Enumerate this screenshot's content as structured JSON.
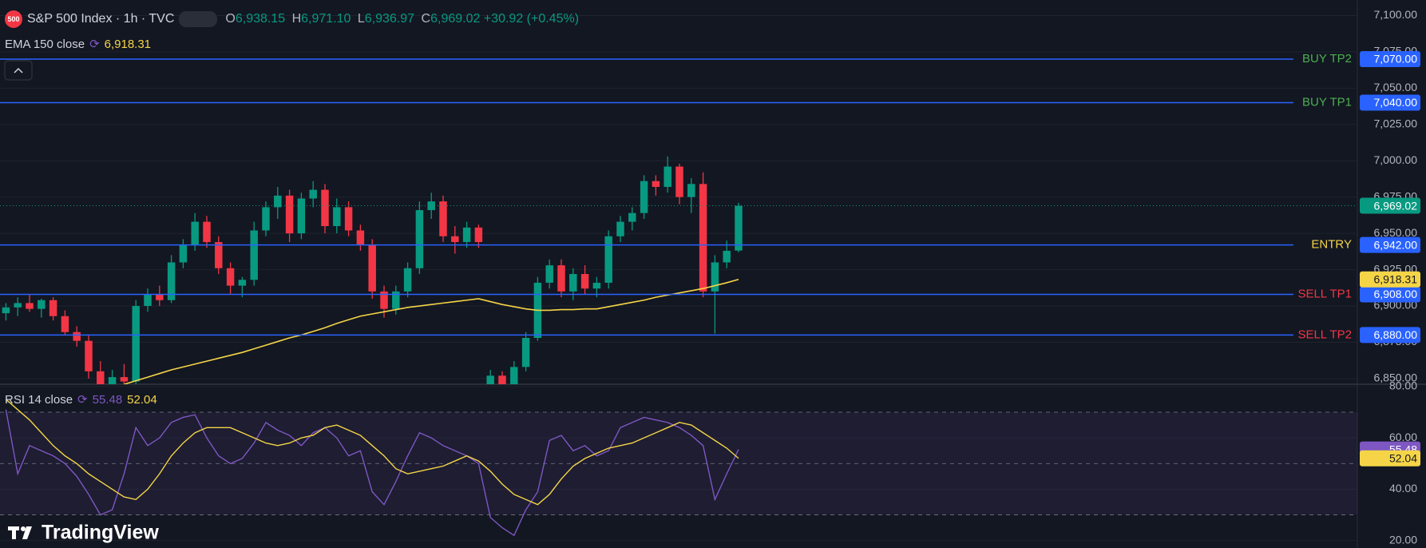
{
  "header": {
    "badge": "500",
    "symbol": "S&P 500 Index · 1h · TVC",
    "ohlc": [
      {
        "key": "O",
        "text": "6,938.15"
      },
      {
        "key": "H",
        "text": "6,971.10"
      },
      {
        "key": "L",
        "text": "6,936.97"
      },
      {
        "key": "C",
        "text": "6,969.02"
      }
    ],
    "change": "+30.92 (+0.45%)",
    "ema": {
      "name": "EMA 150 close",
      "value": "6,918.31"
    },
    "rsi": {
      "name": "RSI 14 close",
      "values": [
        "55.48",
        "52.04"
      ]
    }
  },
  "watermark": "TradingView",
  "chart_data": [
    {
      "type": "candlestick",
      "ylim": [
        6846.1,
        7110.7
      ],
      "yticks": [
        {
          "value": 6850,
          "label": "6,850.00"
        },
        {
          "value": 6875,
          "label": "6,875.00"
        },
        {
          "value": 6900,
          "label": "6,900.00"
        },
        {
          "value": 6925,
          "label": "6,925.00"
        },
        {
          "value": 6950,
          "label": "6,950.00"
        },
        {
          "value": 6975,
          "label": "6,975.00"
        },
        {
          "value": 7000,
          "label": "7,000.00"
        },
        {
          "value": 7025,
          "label": "7,025.00"
        },
        {
          "value": 7050,
          "label": "7,050.00"
        },
        {
          "value": 7075,
          "label": "7,075.00"
        },
        {
          "value": 7100,
          "label": "7,100.00"
        }
      ],
      "up_color": "#089981",
      "down_color": "#f23645",
      "candles": {
        "open": [
          6895,
          6899,
          6902,
          6898,
          6904,
          6893,
          6882,
          6876,
          6855,
          6845,
          6851,
          6848,
          6900,
          6908,
          6904,
          6930,
          6942,
          6958,
          6944,
          6926,
          6914,
          6918,
          6952,
          6968,
          6976,
          6950,
          6974,
          6980,
          6955,
          6968,
          6952,
          6942,
          6910,
          6898,
          6910,
          6926,
          6966,
          6972,
          6948,
          6944,
          6954,
          6840,
          6852,
          6836,
          6858,
          6878,
          6916,
          6928,
          6910,
          6922,
          6912,
          6916,
          6948,
          6958,
          6964,
          6986,
          6982,
          6996,
          6975,
          6984,
          6910,
          6930,
          6938.15
        ],
        "high": [
          6902,
          6906,
          6908,
          6905,
          6906,
          6897,
          6886,
          6880,
          6862,
          6856,
          6860,
          6904,
          6912,
          6914,
          6935,
          6946,
          6964,
          6962,
          6948,
          6930,
          6920,
          6958,
          6972,
          6982,
          6980,
          6978,
          6986,
          6984,
          6974,
          6972,
          6956,
          6946,
          6914,
          6914,
          6930,
          6972,
          6978,
          6976,
          6955,
          6958,
          6956,
          6856,
          6855,
          6862,
          6882,
          6920,
          6932,
          6932,
          6926,
          6928,
          6920,
          6952,
          6962,
          6968,
          6990,
          6990,
          7003,
          6998,
          6988,
          6992,
          6935,
          6945,
          6971.1
        ],
        "low": [
          6890,
          6893,
          6896,
          6892,
          6890,
          6880,
          6872,
          6850,
          6838,
          6840,
          6844,
          6846,
          6896,
          6900,
          6902,
          6926,
          6938,
          6940,
          6922,
          6908,
          6906,
          6914,
          6948,
          6960,
          6944,
          6946,
          6968,
          6950,
          6950,
          6948,
          6938,
          6905,
          6892,
          6894,
          6906,
          6922,
          6960,
          6944,
          6936,
          6940,
          6940,
          6828,
          6830,
          6832,
          6855,
          6876,
          6912,
          6906,
          6904,
          6908,
          6906,
          6912,
          6944,
          6952,
          6960,
          6976,
          6978,
          6970,
          6964,
          6906,
          6881,
          6926,
          6936.97
        ],
        "close": [
          6899,
          6902,
          6898,
          6904,
          6893,
          6882,
          6876,
          6855,
          6845,
          6851,
          6848,
          6900,
          6908,
          6904,
          6930,
          6942,
          6958,
          6944,
          6926,
          6914,
          6918,
          6952,
          6968,
          6976,
          6950,
          6974,
          6980,
          6955,
          6968,
          6952,
          6942,
          6910,
          6898,
          6910,
          6926,
          6966,
          6972,
          6948,
          6944,
          6954,
          6944,
          6852,
          6836,
          6858,
          6878,
          6916,
          6928,
          6910,
          6922,
          6912,
          6916,
          6948,
          6958,
          6964,
          6986,
          6982,
          6996,
          6975,
          6984,
          6910,
          6930,
          6938,
          6969.02
        ]
      },
      "ema": {
        "color": "#f5d547",
        "values": [
          null,
          null,
          null,
          null,
          null,
          null,
          null,
          null,
          null,
          null,
          6846,
          6848.5,
          6851,
          6853.5,
          6856,
          6858,
          6860,
          6862,
          6864,
          6866,
          6868,
          6870.5,
          6873,
          6875.5,
          6878,
          6880,
          6882.5,
          6885,
          6888,
          6890.5,
          6893,
          6894.5,
          6896,
          6897.5,
          6899,
          6900,
          6901,
          6902,
          6903,
          6904,
          6905,
          6903,
          6901,
          6899.5,
          6898,
          6897,
          6897,
          6897.5,
          6897.5,
          6898,
          6898,
          6899.5,
          6901,
          6902.5,
          6904,
          6906,
          6907.5,
          6909,
          6910.5,
          6912,
          6914,
          6916,
          6918.31
        ]
      },
      "level_color": "#2962ff",
      "levels": [
        {
          "label": "BUY TP2",
          "value": 7070,
          "value_label": "7,070.00",
          "color": "#4caf50"
        },
        {
          "label": "BUY TP1",
          "value": 7040,
          "value_label": "7,040.00",
          "color": "#4caf50"
        },
        {
          "label": "ENTRY",
          "value": 6942,
          "value_label": "6,942.00",
          "color": "#f5d547"
        },
        {
          "label": "SELL TP1",
          "value": 6908,
          "value_label": "6,908.00",
          "color": "#f23645"
        },
        {
          "label": "SELL TP2",
          "value": 6880,
          "value_label": "6,880.00",
          "color": "#f23645"
        }
      ]
    },
    {
      "type": "line",
      "ylim": [
        17.1,
        80.9
      ],
      "yticks": [
        {
          "value": 20,
          "label": "20.00"
        },
        {
          "value": 40,
          "label": "40.00"
        },
        {
          "value": 60,
          "label": "60.00"
        },
        {
          "value": 80,
          "label": "80.00"
        }
      ],
      "hlines": [
        70,
        50,
        30
      ],
      "series": [
        {
          "color": "#7e57c2",
          "values": [
            71,
            46,
            57,
            55,
            53,
            50,
            45,
            38,
            30,
            32,
            46,
            64,
            57,
            60,
            66,
            68,
            69,
            60,
            53,
            50,
            52,
            58,
            66,
            63,
            61,
            57,
            62,
            64,
            60,
            53,
            55,
            39,
            34,
            43,
            53,
            62,
            60,
            57,
            55,
            53,
            50,
            29,
            25,
            22,
            32,
            39,
            59,
            61,
            55,
            57,
            53,
            55,
            64,
            66,
            68,
            67,
            66,
            64,
            61,
            57,
            36,
            46,
            55.48
          ]
        },
        {
          "color": "#f5d547",
          "values": [
            75,
            71,
            67,
            62,
            57,
            53,
            50,
            46,
            43,
            40,
            37,
            36,
            40,
            46,
            53,
            58,
            62,
            64,
            64,
            64,
            62,
            60,
            58,
            57,
            58,
            60,
            61,
            64,
            65,
            63,
            61,
            57,
            53,
            48,
            46,
            47,
            48,
            49,
            51,
            53,
            51,
            47,
            42,
            38,
            36,
            34,
            38,
            44,
            49,
            52,
            54,
            56,
            57,
            58,
            60,
            62,
            64,
            66,
            65,
            62,
            59,
            56,
            52.04
          ]
        }
      ]
    }
  ]
}
